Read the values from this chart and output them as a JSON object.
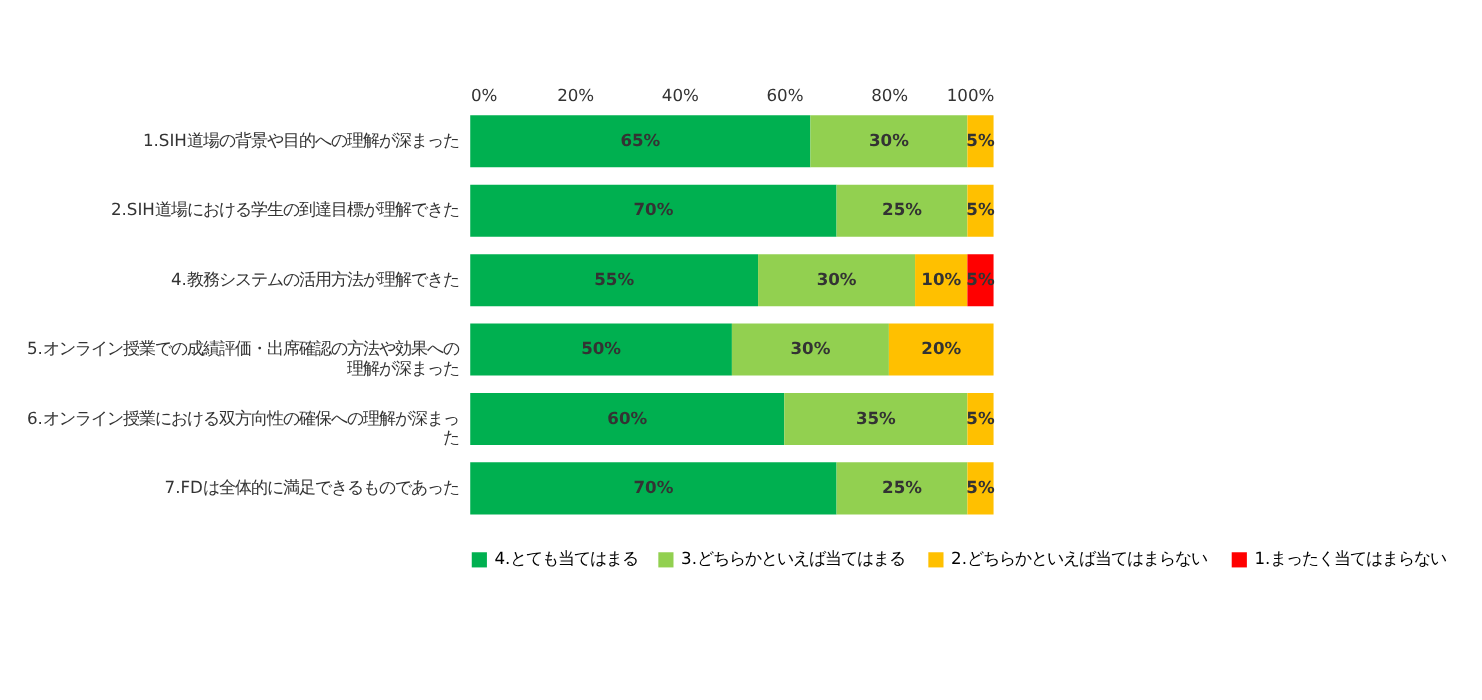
{
  "chart_data": {
    "type": "bar",
    "orientation": "horizontal",
    "stacked": true,
    "categories": [
      "1.SIH道場の背景や目的への理解が深まった",
      "2.SIH道場における学生の到達目標が理解できた",
      "4.教務システムの活用方法が理解できた",
      "5.オンライン授業での成績評価・出席確認の方法や効果への理解が深まった",
      "6.オンライン授業における双方向性の確保への理解が深まった",
      "7.FDは全体的に満足できるものであった"
    ],
    "series": [
      {
        "name": "4.とても当てはまる",
        "color": "#00b050",
        "values": [
          65,
          70,
          55,
          50,
          60,
          70
        ],
        "value_labels": [
          "65%",
          "70%",
          "55%",
          "50%",
          "60%",
          "70%"
        ]
      },
      {
        "name": "3.どちらかといえば当てはまる",
        "color": "#92d050",
        "values": [
          30,
          25,
          30,
          30,
          35,
          25
        ],
        "value_labels": [
          "30%",
          "25%",
          "30%",
          "30%",
          "35%",
          "25%"
        ]
      },
      {
        "name": "2.どちらかといえば当てはまらない",
        "color": "#ffc000",
        "values": [
          5,
          5,
          10,
          20,
          5,
          5
        ],
        "value_labels": [
          "5%",
          "5%",
          "10%",
          "20%",
          "5%",
          "5%"
        ]
      },
      {
        "name": "1.まったく当てはまらない",
        "color": "#ff0000",
        "values": [
          null,
          null,
          5,
          null,
          null,
          null
        ],
        "value_labels": [
          null,
          null,
          "5%",
          null,
          null,
          null
        ]
      }
    ],
    "xlim": [
      0,
      100
    ],
    "xticks": [
      {
        "value": 0,
        "label": "0%"
      },
      {
        "value": 20,
        "label": "20%"
      },
      {
        "value": 40,
        "label": "40%"
      },
      {
        "value": 60,
        "label": "60%"
      },
      {
        "value": 80,
        "label": "80%"
      },
      {
        "value": 100,
        "label": "100%"
      }
    ],
    "grid": false,
    "legend": "bottom"
  }
}
